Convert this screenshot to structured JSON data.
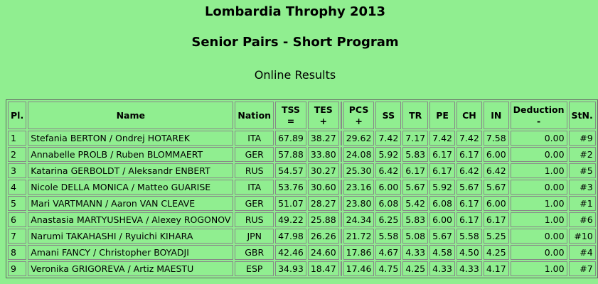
{
  "header": {
    "title": "Lombardia Throphy 2013",
    "subtitle": "Senior Pairs - Short Program",
    "caption": "Online Results"
  },
  "table": {
    "columns": [
      [
        "Pl."
      ],
      [
        "Name"
      ],
      [
        "Nation"
      ],
      [
        "TSS",
        "="
      ],
      [
        "TES",
        "+"
      ],
      [
        "PCS",
        "+"
      ],
      [
        "SS"
      ],
      [
        "TR"
      ],
      [
        "PE"
      ],
      [
        "CH"
      ],
      [
        "IN"
      ],
      [
        "Deduction",
        "-"
      ],
      [
        "StN."
      ]
    ],
    "rows": [
      [
        "1",
        "Stefania BERTON / Ondrej HOTAREK",
        "ITA",
        "67.89",
        "38.27",
        "29.62",
        "7.42",
        "7.17",
        "7.42",
        "7.42",
        "7.58",
        "0.00",
        "#9"
      ],
      [
        "2",
        "Annabelle PROLB / Ruben BLOMMAERT",
        "GER",
        "57.88",
        "33.80",
        "24.08",
        "5.92",
        "5.83",
        "6.17",
        "6.17",
        "6.00",
        "0.00",
        "#2"
      ],
      [
        "3",
        "Katarina GERBOLDT / Aleksandr ENBERT",
        "RUS",
        "54.57",
        "30.27",
        "25.30",
        "6.42",
        "6.17",
        "6.17",
        "6.42",
        "6.42",
        "1.00",
        "#5"
      ],
      [
        "4",
        "Nicole DELLA MONICA / Matteo GUARISE",
        "ITA",
        "53.76",
        "30.60",
        "23.16",
        "6.00",
        "5.67",
        "5.92",
        "5.67",
        "5.67",
        "0.00",
        "#3"
      ],
      [
        "5",
        "Mari VARTMANN / Aaron VAN CLEAVE",
        "GER",
        "51.07",
        "28.27",
        "23.80",
        "6.08",
        "5.42",
        "6.08",
        "6.17",
        "6.00",
        "1.00",
        "#1"
      ],
      [
        "6",
        "Anastasia MARTYUSHEVA / Alexey ROGONOV",
        "RUS",
        "49.22",
        "25.88",
        "24.34",
        "6.25",
        "5.83",
        "6.00",
        "6.17",
        "6.17",
        "1.00",
        "#6"
      ],
      [
        "7",
        "Narumi TAKAHASHI / Ryuichi KIHARA",
        "JPN",
        "47.98",
        "26.26",
        "21.72",
        "5.58",
        "5.08",
        "5.67",
        "5.58",
        "5.25",
        "0.00",
        "#10"
      ],
      [
        "8",
        "Amani FANCY / Christopher BOYADJI",
        "GBR",
        "42.46",
        "24.60",
        "17.86",
        "4.67",
        "4.33",
        "4.58",
        "4.50",
        "4.25",
        "0.00",
        "#4"
      ],
      [
        "9",
        "Veronika GRIGOREVA / Artiz MAESTU",
        "ESP",
        "34.93",
        "18.47",
        "17.46",
        "4.75",
        "4.25",
        "4.33",
        "4.33",
        "4.17",
        "1.00",
        "#7"
      ]
    ]
  }
}
